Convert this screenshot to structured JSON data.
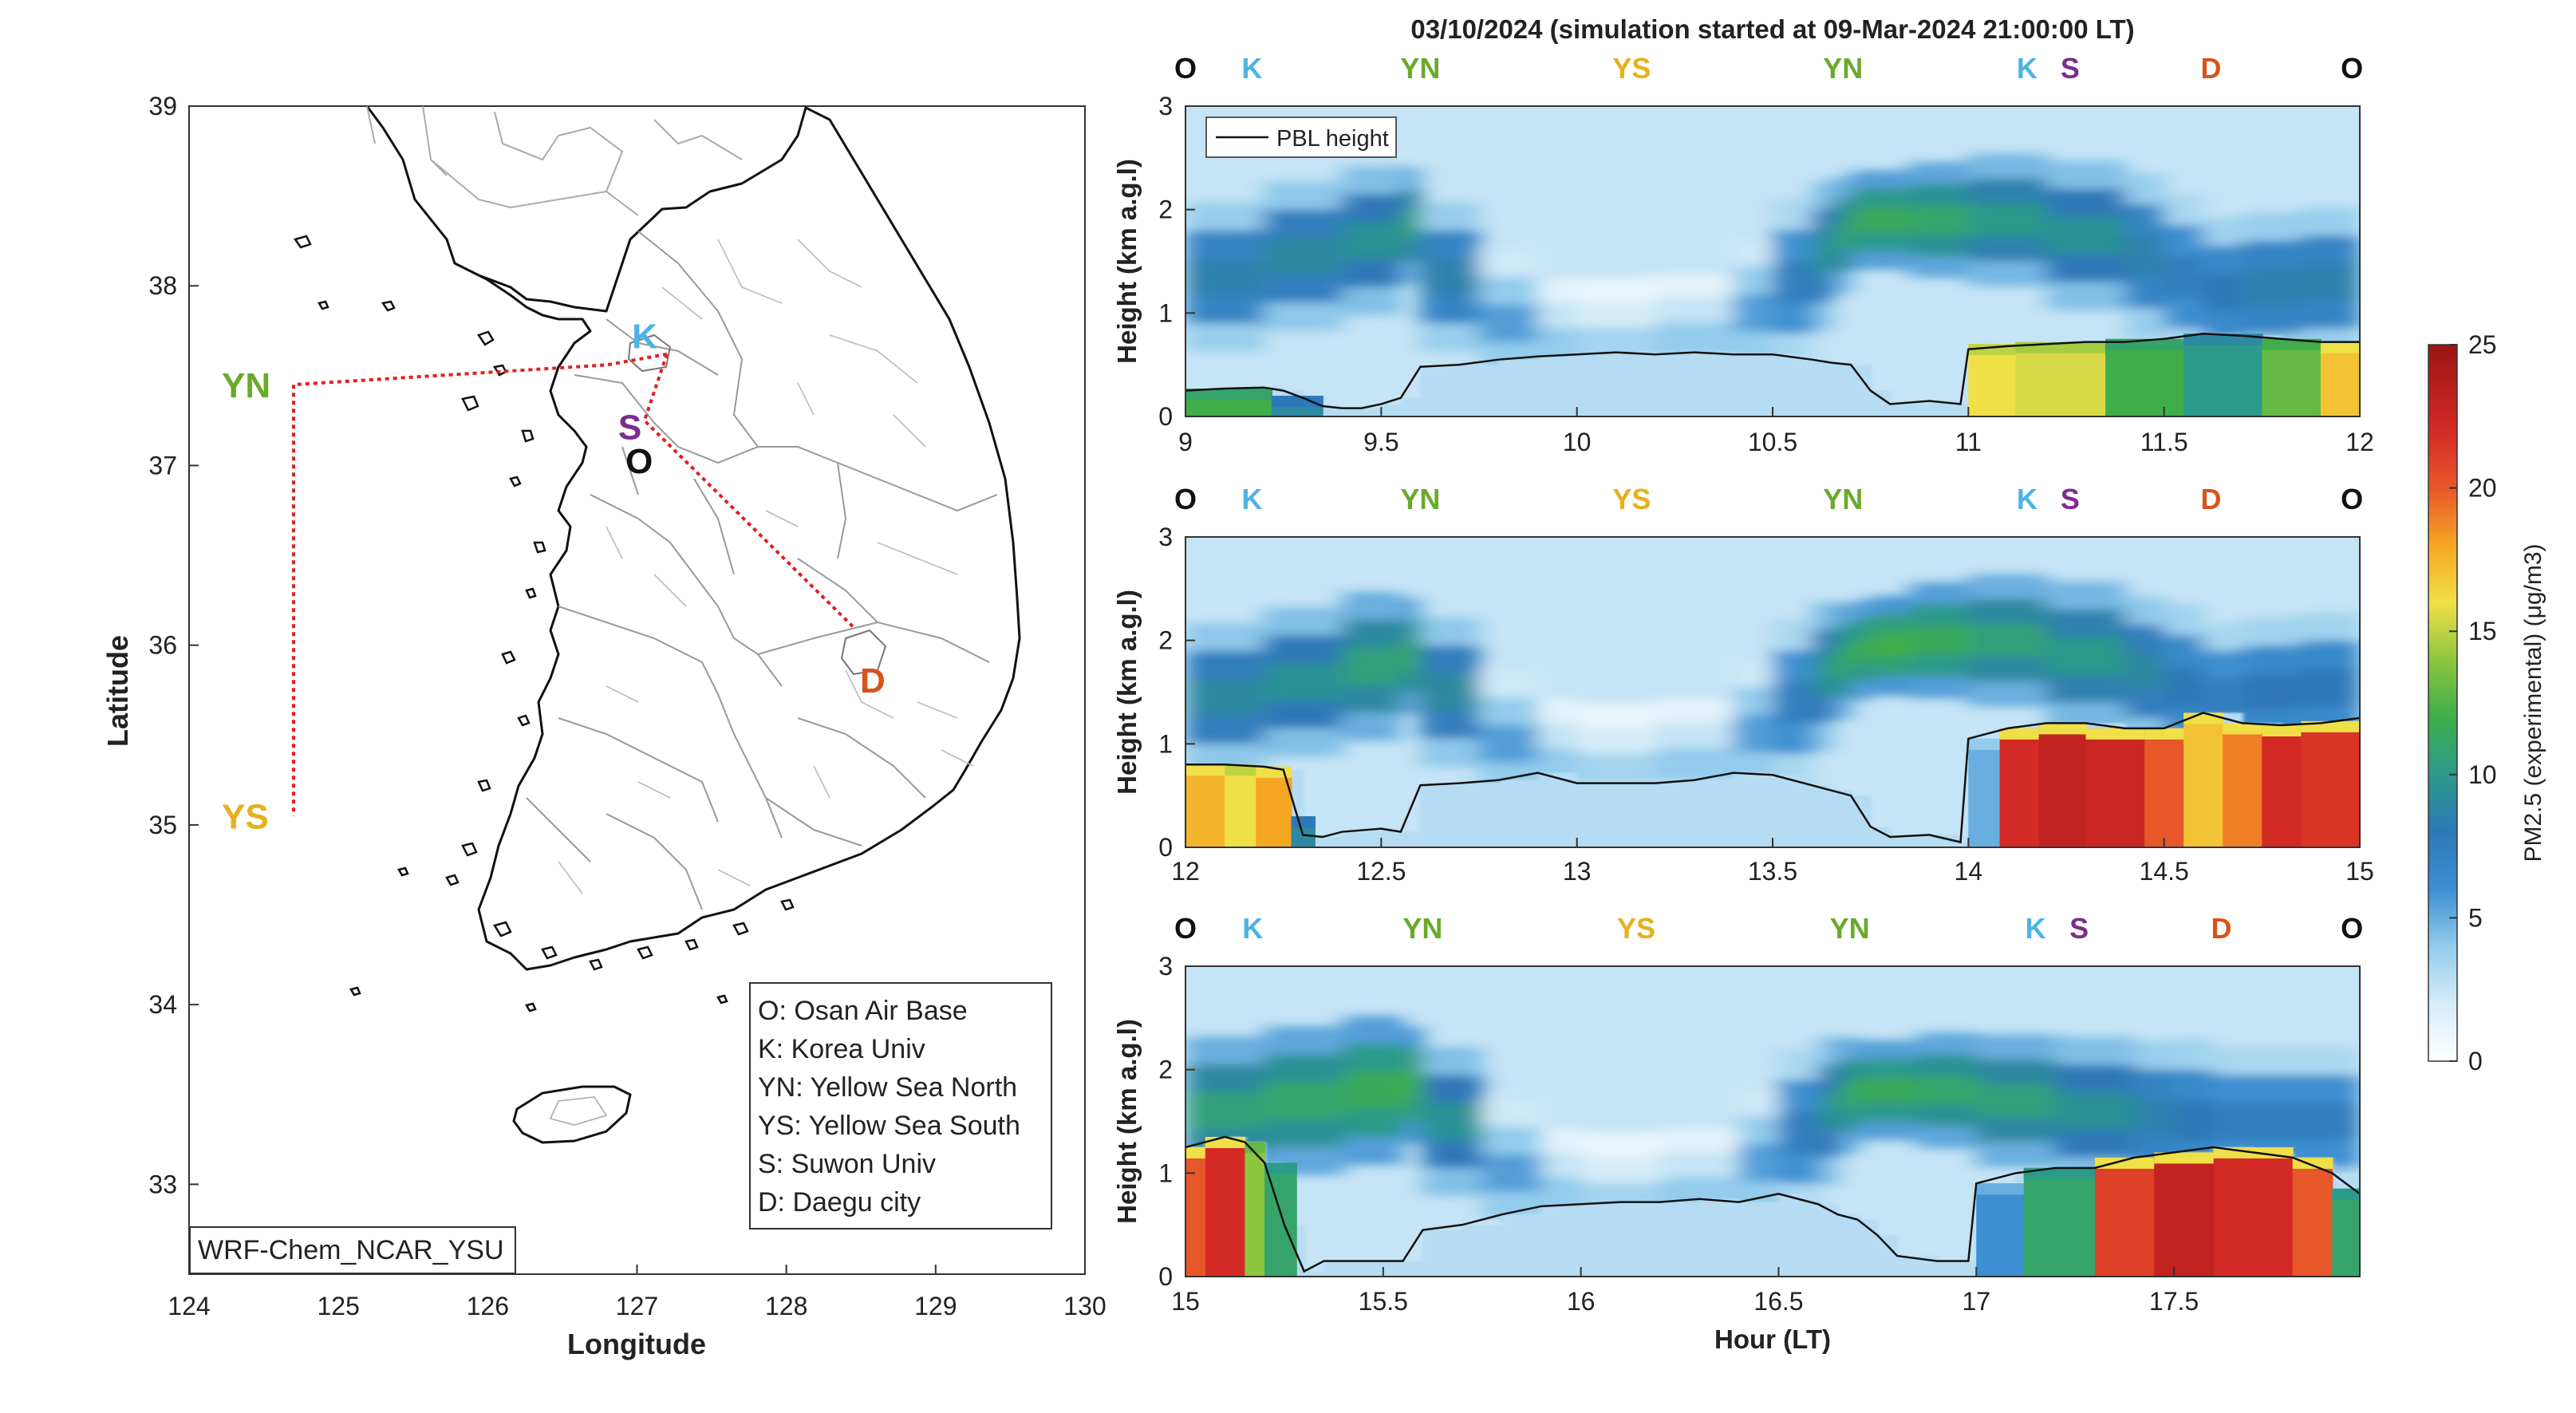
{
  "title": "03/10/2024 (simulation started at 09-Mar-2024 21:00:00 LT)",
  "colors": {
    "O": "#111111",
    "K": "#4db3e6",
    "YN": "#6aaa2a",
    "YS": "#e6b01e",
    "S": "#7b2d8e",
    "D": "#d95319",
    "route": "#e02020"
  },
  "map": {
    "xlabel": "Longitude",
    "ylabel": "Latitude",
    "xlim": [
      124,
      130
    ],
    "ylim": [
      32.5,
      39
    ],
    "xticks": [
      "124",
      "125",
      "126",
      "127",
      "128",
      "129",
      "130"
    ],
    "yticks": [
      "33",
      "34",
      "35",
      "36",
      "37",
      "38",
      "39"
    ],
    "model_label": "WRF-Chem_NCAR_YSU",
    "sites": [
      {
        "code": "K",
        "lon": 127.03,
        "lat": 37.59
      },
      {
        "code": "YN",
        "lon": 124.7,
        "lat": 37.45
      },
      {
        "code": "S",
        "lon": 126.97,
        "lat": 37.28
      },
      {
        "code": "O",
        "lon": 127.03,
        "lat": 37.09
      },
      {
        "code": "D",
        "lon": 128.6,
        "lat": 35.87
      },
      {
        "code": "YS",
        "lon": 124.7,
        "lat": 35.05
      }
    ],
    "route": [
      [
        127.2,
        37.62
      ],
      [
        126.8,
        37.56
      ],
      [
        124.7,
        37.45
      ],
      [
        124.7,
        35.05
      ]
    ],
    "route2": [
      [
        127.2,
        37.62
      ],
      [
        127.05,
        37.25
      ],
      [
        128.45,
        36.1
      ]
    ],
    "legend": [
      "O: Osan Air Base",
      "K: Korea Univ",
      "YN: Yellow Sea North",
      "YS: Yellow Sea South",
      "S: Suwon Univ",
      "D: Daegu city"
    ]
  },
  "chart_data": [
    {
      "type": "heatmap",
      "series": [
        {
          "name": "PBL height"
        }
      ],
      "xlabel": "",
      "ylabel": "Height (km a.g.l)",
      "xlim": [
        9,
        12
      ],
      "ylim": [
        0,
        3
      ],
      "xticks": [
        "9",
        "9.5",
        "10",
        "10.5",
        "11",
        "11.5",
        "12"
      ],
      "yticks": [
        "0",
        "1",
        "2",
        "3"
      ],
      "site_labels": [
        {
          "code": "O",
          "hour": 9.0
        },
        {
          "code": "K",
          "hour": 9.17
        },
        {
          "code": "YN",
          "hour": 9.6
        },
        {
          "code": "YS",
          "hour": 10.14
        },
        {
          "code": "YN",
          "hour": 10.68
        },
        {
          "code": "K",
          "hour": 11.15
        },
        {
          "code": "S",
          "hour": 11.26
        },
        {
          "code": "D",
          "hour": 11.62
        },
        {
          "code": "O",
          "hour": 11.98
        }
      ],
      "pbl_x": [
        9.0,
        9.1,
        9.2,
        9.25,
        9.3,
        9.35,
        9.4,
        9.45,
        9.5,
        9.55,
        9.6,
        9.7,
        9.8,
        9.9,
        10.0,
        10.1,
        10.2,
        10.3,
        10.4,
        10.5,
        10.6,
        10.65,
        10.7,
        10.75,
        10.8,
        10.9,
        10.98,
        11.0,
        11.1,
        11.2,
        11.3,
        11.4,
        11.5,
        11.6,
        11.7,
        11.8,
        11.9,
        12.0
      ],
      "pbl_y": [
        0.25,
        0.27,
        0.28,
        0.25,
        0.18,
        0.1,
        0.08,
        0.08,
        0.12,
        0.18,
        0.48,
        0.5,
        0.55,
        0.58,
        0.6,
        0.62,
        0.6,
        0.62,
        0.6,
        0.6,
        0.55,
        0.52,
        0.5,
        0.25,
        0.12,
        0.15,
        0.12,
        0.65,
        0.68,
        0.7,
        0.72,
        0.72,
        0.75,
        0.8,
        0.78,
        0.75,
        0.72,
        0.72
      ],
      "bl_blocks": [
        [
          9.0,
          9.22,
          0.27,
          12
        ],
        [
          9.22,
          9.35,
          0.2,
          9
        ],
        [
          11.0,
          11.12,
          0.7,
          16
        ],
        [
          11.12,
          11.35,
          0.72,
          15.5
        ],
        [
          11.35,
          11.55,
          0.75,
          12
        ],
        [
          11.55,
          11.75,
          0.8,
          10
        ],
        [
          11.75,
          11.9,
          0.75,
          13
        ],
        [
          11.9,
          12.0,
          0.72,
          17
        ]
      ],
      "aloft_x": [
        9.0,
        9.2,
        9.4,
        9.55,
        9.6,
        9.75,
        9.9,
        10.0,
        10.2,
        10.4,
        10.5,
        10.6,
        10.65,
        10.7,
        10.75,
        10.85,
        11.0,
        11.2,
        11.4,
        11.5,
        11.6,
        11.7,
        11.85,
        12.0
      ],
      "aloft_c": [
        1.35,
        1.55,
        1.7,
        1.85,
        1.35,
        0.9,
        0.7,
        0.7,
        0.75,
        1.0,
        1.3,
        1.55,
        1.75,
        1.9,
        1.9,
        1.9,
        1.9,
        1.75,
        1.55,
        1.35,
        1.2,
        1.25,
        1.3,
        1.3
      ],
      "aloft_w": [
        0.45,
        0.45,
        0.45,
        0.35,
        0.45,
        0.45,
        0.4,
        0.4,
        0.4,
        0.45,
        0.5,
        0.45,
        0.35,
        0.3,
        0.3,
        0.35,
        0.4,
        0.45,
        0.5,
        0.5,
        0.45,
        0.45,
        0.45,
        0.45
      ],
      "aloft_v": [
        7,
        7.5,
        8,
        9,
        7,
        4,
        2.5,
        2,
        2.5,
        4,
        6,
        8,
        9,
        10,
        10,
        9.5,
        8.5,
        8,
        7,
        6,
        6.5,
        7,
        7,
        6.5
      ],
      "cmap": "parula-like",
      "clim": [
        0,
        25
      ]
    },
    {
      "type": "heatmap",
      "xlabel": "",
      "ylabel": "Height (km a.g.l)",
      "xlim": [
        12,
        15
      ],
      "ylim": [
        0,
        3
      ],
      "xticks": [
        "12",
        "12.5",
        "13",
        "13.5",
        "14",
        "14.5",
        "15"
      ],
      "yticks": [
        "0",
        "1",
        "2",
        "3"
      ],
      "site_labels": [
        {
          "code": "O",
          "hour": 12.0
        },
        {
          "code": "K",
          "hour": 12.17
        },
        {
          "code": "YN",
          "hour": 12.6
        },
        {
          "code": "YS",
          "hour": 13.14
        },
        {
          "code": "YN",
          "hour": 13.68
        },
        {
          "code": "K",
          "hour": 14.15
        },
        {
          "code": "S",
          "hour": 14.26
        },
        {
          "code": "D",
          "hour": 14.62
        },
        {
          "code": "O",
          "hour": 14.98
        }
      ],
      "pbl_x": [
        12.0,
        12.1,
        12.2,
        12.25,
        12.3,
        12.35,
        12.4,
        12.5,
        12.55,
        12.6,
        12.7,
        12.8,
        12.9,
        13.0,
        13.1,
        13.2,
        13.3,
        13.4,
        13.5,
        13.6,
        13.65,
        13.7,
        13.75,
        13.8,
        13.9,
        13.98,
        14.0,
        14.1,
        14.2,
        14.3,
        14.4,
        14.5,
        14.6,
        14.7,
        14.8,
        14.9,
        15.0
      ],
      "pbl_y": [
        0.8,
        0.8,
        0.78,
        0.75,
        0.12,
        0.1,
        0.15,
        0.18,
        0.15,
        0.6,
        0.62,
        0.65,
        0.72,
        0.62,
        0.62,
        0.62,
        0.65,
        0.72,
        0.7,
        0.6,
        0.55,
        0.5,
        0.2,
        0.1,
        0.12,
        0.05,
        1.05,
        1.15,
        1.2,
        1.2,
        1.15,
        1.15,
        1.3,
        1.2,
        1.18,
        1.2,
        1.25
      ],
      "bl_blocks": [
        [
          12.0,
          12.1,
          0.8,
          17.5
        ],
        [
          12.1,
          12.18,
          0.8,
          16
        ],
        [
          12.18,
          12.27,
          0.78,
          18
        ],
        [
          12.27,
          12.33,
          0.3,
          9
        ],
        [
          14.0,
          14.08,
          1.05,
          5
        ],
        [
          14.08,
          14.18,
          1.15,
          22
        ],
        [
          14.18,
          14.3,
          1.2,
          23
        ],
        [
          14.3,
          14.45,
          1.15,
          22.5
        ],
        [
          14.45,
          14.55,
          1.15,
          20
        ],
        [
          14.55,
          14.65,
          1.3,
          17
        ],
        [
          14.65,
          14.75,
          1.2,
          19
        ],
        [
          14.75,
          14.85,
          1.18,
          22
        ],
        [
          14.85,
          15.0,
          1.22,
          21.5
        ]
      ],
      "aloft_x": [
        12.0,
        12.2,
        12.4,
        12.55,
        12.6,
        12.75,
        12.9,
        13.0,
        13.2,
        13.4,
        13.5,
        13.6,
        13.65,
        13.7,
        13.75,
        13.85,
        14.0,
        14.2,
        14.4,
        14.5,
        14.6,
        14.7,
        14.85,
        15.0
      ],
      "aloft_c": [
        1.45,
        1.6,
        1.75,
        1.85,
        1.5,
        1.0,
        0.8,
        0.75,
        0.8,
        1.1,
        1.4,
        1.65,
        1.8,
        1.9,
        1.95,
        2.0,
        2.0,
        1.85,
        1.7,
        1.55,
        1.45,
        1.5,
        1.55,
        1.55
      ],
      "aloft_w": [
        0.45,
        0.45,
        0.45,
        0.35,
        0.45,
        0.45,
        0.4,
        0.4,
        0.4,
        0.45,
        0.5,
        0.45,
        0.35,
        0.3,
        0.3,
        0.35,
        0.4,
        0.45,
        0.45,
        0.5,
        0.45,
        0.45,
        0.45,
        0.45
      ],
      "aloft_v": [
        7.5,
        8,
        9,
        9.5,
        7.5,
        4,
        2.5,
        2,
        2.5,
        4,
        6,
        8,
        9.5,
        10,
        10.5,
        10,
        9,
        8.5,
        7.5,
        6.5,
        6,
        6.5,
        6.5,
        6.5
      ],
      "cmap": "parula-like",
      "clim": [
        0,
        25
      ]
    },
    {
      "type": "heatmap",
      "xlabel": "Hour (LT)",
      "ylabel": "Height (km a.g.l)",
      "xlim": [
        15,
        17.97
      ],
      "ylim": [
        0,
        3
      ],
      "xticks": [
        "15",
        "15.5",
        "16",
        "16.5",
        "17",
        "17.5"
      ],
      "yticks": [
        "0",
        "1",
        "2",
        "3"
      ],
      "site_labels": [
        {
          "code": "O",
          "hour": 15.0
        },
        {
          "code": "K",
          "hour": 15.17
        },
        {
          "code": "YN",
          "hour": 15.6
        },
        {
          "code": "YS",
          "hour": 16.14
        },
        {
          "code": "YN",
          "hour": 16.68
        },
        {
          "code": "K",
          "hour": 17.15
        },
        {
          "code": "S",
          "hour": 17.26
        },
        {
          "code": "D",
          "hour": 17.62
        },
        {
          "code": "O",
          "hour": 17.95
        }
      ],
      "pbl_x": [
        15.0,
        15.05,
        15.1,
        15.15,
        15.2,
        15.25,
        15.3,
        15.35,
        15.4,
        15.5,
        15.55,
        15.6,
        15.7,
        15.8,
        15.9,
        16.0,
        16.1,
        16.2,
        16.3,
        16.4,
        16.5,
        16.6,
        16.65,
        16.7,
        16.75,
        16.8,
        16.9,
        16.98,
        17.0,
        17.1,
        17.2,
        17.3,
        17.4,
        17.5,
        17.6,
        17.7,
        17.8,
        17.9,
        17.97
      ],
      "pbl_y": [
        1.25,
        1.3,
        1.35,
        1.3,
        1.1,
        0.5,
        0.05,
        0.15,
        0.15,
        0.15,
        0.15,
        0.45,
        0.5,
        0.6,
        0.68,
        0.7,
        0.72,
        0.72,
        0.75,
        0.72,
        0.8,
        0.7,
        0.6,
        0.55,
        0.4,
        0.2,
        0.15,
        0.15,
        0.9,
        1.0,
        1.05,
        1.05,
        1.15,
        1.2,
        1.25,
        1.2,
        1.15,
        1.0,
        0.8
      ],
      "bl_blocks": [
        [
          15.0,
          15.05,
          1.25,
          20
        ],
        [
          15.05,
          15.15,
          1.35,
          22
        ],
        [
          15.15,
          15.2,
          1.3,
          14
        ],
        [
          15.2,
          15.28,
          1.1,
          11
        ],
        [
          17.0,
          17.12,
          0.9,
          6
        ],
        [
          17.12,
          17.3,
          1.05,
          11
        ],
        [
          17.3,
          17.45,
          1.15,
          21
        ],
        [
          17.45,
          17.6,
          1.2,
          23
        ],
        [
          17.6,
          17.8,
          1.25,
          22
        ],
        [
          17.8,
          17.9,
          1.15,
          20
        ],
        [
          17.9,
          17.97,
          0.85,
          11
        ]
      ],
      "aloft_x": [
        15.0,
        15.2,
        15.4,
        15.55,
        15.6,
        15.75,
        15.9,
        16.0,
        16.2,
        16.4,
        16.5,
        16.6,
        16.65,
        16.7,
        16.75,
        16.85,
        17.0,
        17.2,
        17.4,
        17.5,
        17.6,
        17.7,
        17.85,
        17.97
      ],
      "aloft_c": [
        1.6,
        1.7,
        1.8,
        1.85,
        1.5,
        1.0,
        0.8,
        0.75,
        0.8,
        1.1,
        1.4,
        1.6,
        1.75,
        1.8,
        1.8,
        1.8,
        1.7,
        1.6,
        1.55,
        1.5,
        1.5,
        1.5,
        1.5,
        1.5
      ],
      "aloft_w": [
        0.45,
        0.45,
        0.45,
        0.35,
        0.45,
        0.45,
        0.4,
        0.4,
        0.4,
        0.45,
        0.5,
        0.45,
        0.35,
        0.3,
        0.3,
        0.35,
        0.4,
        0.45,
        0.45,
        0.5,
        0.45,
        0.45,
        0.45,
        0.45
      ],
      "aloft_v": [
        9,
        9.5,
        10,
        10.5,
        8,
        4,
        2.5,
        2,
        2.5,
        4,
        6,
        8,
        9.5,
        10,
        10,
        9.5,
        9,
        8,
        7,
        6.5,
        6,
        6,
        6,
        6
      ],
      "cmap": "parula-like",
      "clim": [
        0,
        25
      ]
    }
  ],
  "colorbar": {
    "label": "PM2.5 (experimental) (μg/m3)",
    "ticks": [
      "0",
      "5",
      "10",
      "15",
      "20",
      "25"
    ],
    "clim": [
      0,
      25
    ]
  }
}
